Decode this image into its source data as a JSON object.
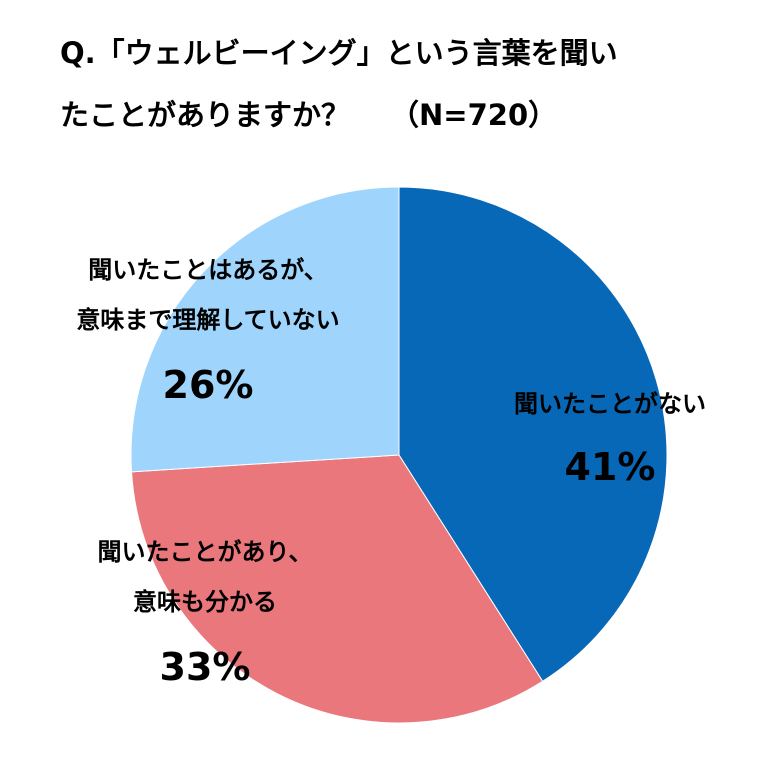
{
  "title": {
    "line1": "Q.「ウェルビーイング」という言葉を聞い",
    "line2": "たことがありますか？",
    "n": "（N=720）"
  },
  "chart_data": {
    "type": "pie",
    "start": "12 o'clock",
    "direction": "clockwise",
    "slices": [
      {
        "label_lines": [
          "聞いたことがない"
        ],
        "value": 41,
        "value_label": "41%",
        "color": "#0868b8"
      },
      {
        "label_lines": [
          "聞いたことがあり、",
          "意味も分かる"
        ],
        "value": 33,
        "value_label": "33%",
        "color": "#ea777c"
      },
      {
        "label_lines": [
          "聞いたことはあるが、",
          "意味まで理解していない"
        ],
        "value": 26,
        "value_label": "26%",
        "color": "#9fd5fd"
      }
    ]
  }
}
